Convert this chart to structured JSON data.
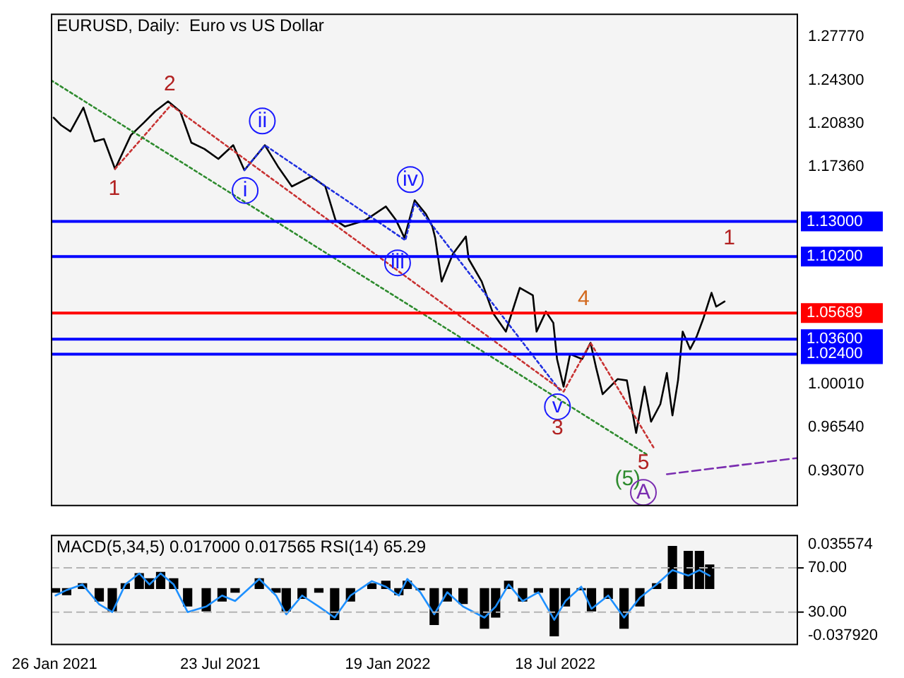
{
  "chart_data": [
    {
      "type": "line",
      "title": "EURUSD, Daily:  Euro vs US Dollar",
      "xlim": [
        "2021-01-22",
        "2023-04-05"
      ],
      "ylim": [
        0.9024,
        1.2962
      ],
      "yticks": [
        {
          "value": 1.2777,
          "label": "1.27770"
        },
        {
          "value": 1.243,
          "label": "1.24300"
        },
        {
          "value": 1.2083,
          "label": "1.20830"
        },
        {
          "value": 1.1736,
          "label": "1.17360"
        },
        {
          "value": 1.0001,
          "label": "1.00010"
        },
        {
          "value": 0.9654,
          "label": "0.96540"
        },
        {
          "value": 0.9307,
          "label": "0.93070"
        }
      ],
      "tick_labels": "y",
      "x": [
        "2021-01-25",
        "2021-02-02",
        "2021-02-12",
        "2021-02-26",
        "2021-03-10",
        "2021-03-20",
        "2021-04-01",
        "2021-04-18",
        "2021-05-02",
        "2021-05-14",
        "2021-05-28",
        "2021-06-10",
        "2021-06-22",
        "2021-07-06",
        "2021-07-21",
        "2021-08-06",
        "2021-08-18",
        "2021-09-09",
        "2021-09-23",
        "2021-10-08",
        "2021-10-29",
        "2021-11-13",
        "2021-11-24",
        "2021-12-04",
        "2021-12-26",
        "2022-01-17",
        "2022-01-28",
        "2022-02-06",
        "2022-02-17",
        "2022-03-01",
        "2022-03-08",
        "2022-03-11",
        "2022-03-18",
        "2022-03-30",
        "2022-04-13",
        "2022-04-16",
        "2022-04-30",
        "2022-05-12",
        "2022-05-26",
        "2022-06-10",
        "2022-06-24",
        "2022-06-28",
        "2022-07-08",
        "2022-07-16",
        "2022-07-20",
        "2022-07-27",
        "2022-08-03",
        "2022-08-16",
        "2022-08-25",
        "2022-08-31",
        "2022-09-07",
        "2022-09-23",
        "2022-10-03",
        "2022-10-13",
        "2022-10-22",
        "2022-10-29",
        "2022-11-08",
        "2022-11-15",
        "2022-11-21",
        "2022-11-27",
        "2022-12-02",
        "2022-12-10",
        "2022-12-17",
        "2022-12-24",
        "2023-01-02",
        "2023-01-07",
        "2023-01-16"
      ],
      "series": [
        {
          "color": "#000000",
          "values": [
            1.213,
            1.207,
            1.202,
            1.221,
            1.194,
            1.196,
            1.172,
            1.199,
            1.209,
            1.218,
            1.226,
            1.218,
            1.193,
            1.188,
            1.18,
            1.191,
            1.171,
            1.191,
            1.174,
            1.158,
            1.166,
            1.158,
            1.131,
            1.126,
            1.131,
            1.142,
            1.131,
            1.117,
            1.147,
            1.136,
            1.126,
            1.117,
            1.082,
            1.104,
            1.118,
            1.1,
            1.082,
            1.057,
            1.042,
            1.077,
            1.071,
            1.042,
            1.058,
            1.049,
            1.02,
            0.998,
            1.024,
            1.02,
            1.033,
            1.013,
            0.992,
            1.004,
            1.003,
            0.961,
            0.998,
            0.97,
            0.984,
            1.009,
            0.975,
            1.003,
            1.042,
            1.028,
            1.038,
            1.052,
            1.073,
            1.062,
            1.066
          ]
        },
        {
          "type": "line",
          "color": "#2e8b2e",
          "line_style": "dotted",
          "x": [
            "2021-01-22",
            "2022-10-24"
          ],
          "values": [
            1.243,
            0.944
          ]
        },
        {
          "type": "line",
          "color": "#c83232",
          "line_style": "dotted",
          "x": [
            "2021-04-01",
            "2021-05-31",
            "2022-07-27",
            "2022-08-25",
            "2022-11-01"
          ],
          "values": [
            1.172,
            1.223,
            0.994,
            1.033,
            0.949
          ]
        },
        {
          "type": "line",
          "color": "#2030e0",
          "line_style": "dotted",
          "x": [
            "2021-08-18",
            "2021-09-09",
            "2022-02-07",
            "2022-02-17",
            "2022-07-23"
          ],
          "values": [
            1.171,
            1.191,
            1.115,
            1.145,
            0.995
          ]
        },
        {
          "type": "line",
          "color": "#7a2db0",
          "line_style": "dashed",
          "x": [
            "2022-11-15",
            "2023-04-05"
          ],
          "values": [
            0.928,
            0.941
          ]
        }
      ],
      "ref_lines": [
        {
          "axis": "y",
          "value": 1.13,
          "label": "1.13000",
          "color": "#0000ff"
        },
        {
          "axis": "y",
          "value": 1.102,
          "label": "1.10200",
          "color": "#0000ff"
        },
        {
          "axis": "y",
          "value": 1.05689,
          "label": "1.05689",
          "color": "#ff0000"
        },
        {
          "axis": "y",
          "value": 1.036,
          "label": "1.03600",
          "color": "#0000ff"
        },
        {
          "axis": "y",
          "value": 1.024,
          "label": "1.02400",
          "color": "#0000ff"
        }
      ],
      "annotations": [
        "1",
        "2",
        "i",
        "ii",
        "iii",
        "iv",
        "v",
        "3",
        "4",
        "5",
        "(5)",
        "A",
        "1"
      ]
    },
    {
      "type": "bar",
      "title": "MACD(5,34,5) 0.017000 0.017565 RSI(14) 65.29",
      "xlim": [
        "2021-01-22",
        "2023-04-05"
      ],
      "xticks": [
        {
          "value": "2021-01-26",
          "label": "26 Jan 2021"
        },
        {
          "value": "2021-07-23",
          "label": "23 Jul 2021"
        },
        {
          "value": "2022-01-19",
          "label": "19 Jan 2022"
        },
        {
          "value": "2022-07-18",
          "label": "18 Jul 2022"
        }
      ],
      "ylim": [
        -0.0456,
        0.0433
      ],
      "yticks": [
        {
          "value": 0.035574,
          "label": "0.035574"
        },
        {
          "value": -0.03792,
          "label": "-0.037920"
        }
      ],
      "y2lim": [
        0,
        100
      ],
      "y2ticks": [
        {
          "value": 70,
          "label": "70.00"
        },
        {
          "value": 30,
          "label": "30.00"
        }
      ],
      "x": [
        "2021-01-27",
        "2021-02-08",
        "2021-02-25",
        "2021-03-15",
        "2021-03-29",
        "2021-04-12",
        "2021-04-27",
        "2021-05-08",
        "2021-05-20",
        "2021-06-03",
        "2021-06-18",
        "2021-07-08",
        "2021-07-25",
        "2021-08-08",
        "2021-09-03",
        "2021-09-21",
        "2021-10-02",
        "2021-10-19",
        "2021-11-06",
        "2021-11-23",
        "2021-12-10",
        "2022-01-02",
        "2022-01-17",
        "2022-01-31",
        "2022-02-09",
        "2022-02-23",
        "2022-03-10",
        "2022-03-24",
        "2022-04-10",
        "2022-05-03",
        "2022-05-15",
        "2022-05-29",
        "2022-06-13",
        "2022-06-30",
        "2022-07-17",
        "2022-07-29",
        "2022-08-15",
        "2022-08-26",
        "2022-09-13",
        "2022-09-30",
        "2022-10-17",
        "2022-11-04",
        "2022-11-21",
        "2022-12-08",
        "2022-12-20",
        "2022-12-31"
      ],
      "series": [
        {
          "color": "#000000",
          "values": [
            -0.003,
            -0.005,
            0.004,
            -0.01,
            -0.018,
            0.004,
            0.012,
            0.008,
            0.013,
            0.008,
            -0.014,
            -0.018,
            -0.01,
            -0.003,
            0.008,
            -0.003,
            -0.018,
            -0.008,
            -0.003,
            -0.025,
            -0.01,
            0.004,
            0.006,
            -0.005,
            0.006,
            -0.001,
            -0.029,
            -0.01,
            -0.012,
            -0.032,
            -0.023,
            0.006,
            -0.01,
            -0.003,
            -0.038,
            -0.014,
            -0.001,
            -0.018,
            -0.008,
            -0.032,
            -0.014,
            0.004,
            0.034,
            0.03,
            0.03,
            0.019
          ]
        },
        {
          "type": "line",
          "axis": "y2",
          "color": "#1e90ff",
          "values": [
            45,
            50,
            55,
            37,
            30,
            55,
            65,
            55,
            65,
            55,
            30,
            35,
            45,
            40,
            60,
            45,
            28,
            45,
            35,
            25,
            45,
            58,
            53,
            45,
            60,
            48,
            28,
            48,
            35,
            25,
            35,
            55,
            40,
            48,
            23,
            40,
            53,
            33,
            45,
            25,
            43,
            55,
            68,
            63,
            68,
            63
          ]
        }
      ],
      "ref_lines": [
        {
          "axis": "y2",
          "value": 70,
          "color": "#b4b4b4",
          "line_style": "dashed"
        },
        {
          "axis": "y2",
          "value": 30,
          "color": "#b4b4b4",
          "line_style": "dashed"
        }
      ]
    }
  ]
}
